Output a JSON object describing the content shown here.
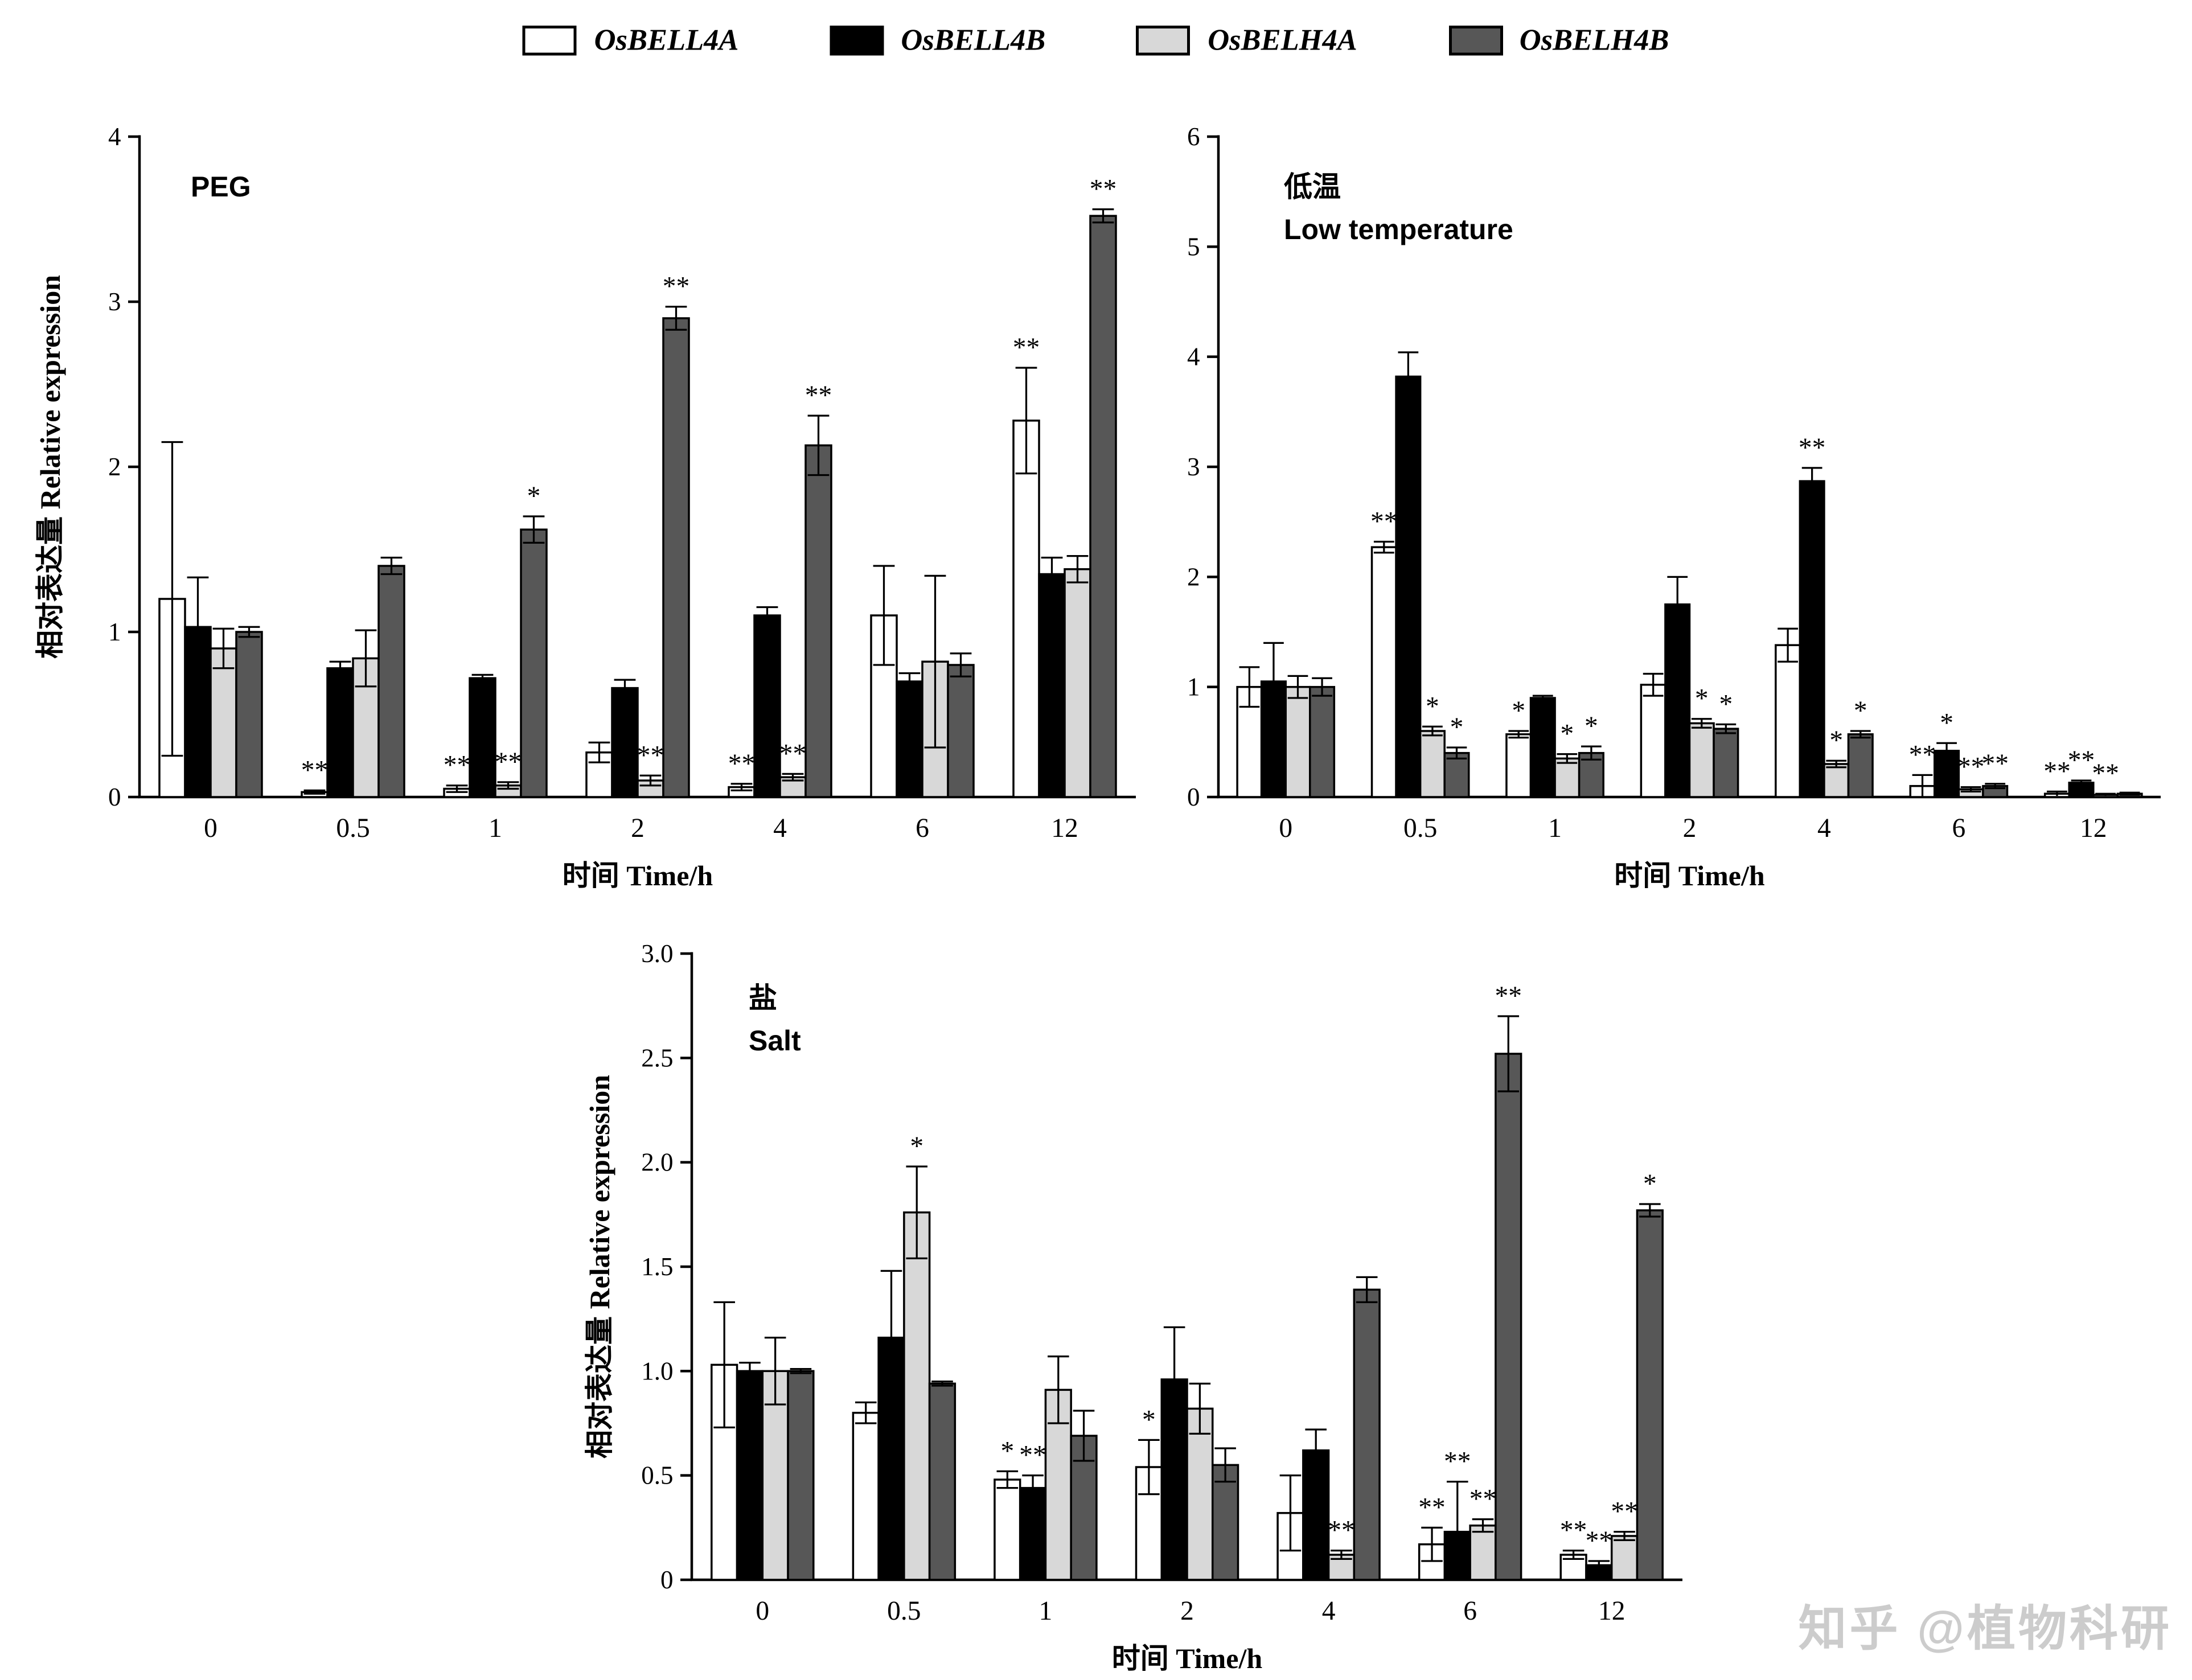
{
  "legend": {
    "items": [
      {
        "label": "OsBELL4A",
        "color": "#ffffff"
      },
      {
        "label": "OsBELL4B",
        "color": "#000000"
      },
      {
        "label": "OsBELH4A",
        "color": "#d8d8d8"
      },
      {
        "label": "OsBELH4B",
        "color": "#575757"
      }
    ]
  },
  "watermark": "知乎 @植物科研",
  "chart_data": [
    {
      "id": "peg",
      "type": "bar",
      "title_lines": [
        "PEG"
      ],
      "xlabel": "时间 Time/h",
      "ylabel": "相对表达量 Relative expression",
      "ylim": [
        0,
        4
      ],
      "yticks": [
        0,
        1,
        2,
        3,
        4
      ],
      "ytick_labels": [
        "0",
        "1",
        "2",
        "3",
        "4"
      ],
      "categories": [
        "0",
        "0.5",
        "1",
        "2",
        "4",
        "6",
        "12"
      ],
      "legend_position": "top",
      "grid": false,
      "series": [
        {
          "name": "OsBELL4A",
          "values": [
            1.2,
            0.03,
            0.05,
            0.27,
            0.06,
            1.1,
            2.28
          ],
          "errors": [
            0.95,
            0.01,
            0.02,
            0.06,
            0.02,
            0.3,
            0.32
          ],
          "sig": [
            "",
            "**",
            "**",
            "",
            "**",
            "",
            "**"
          ]
        },
        {
          "name": "OsBELL4B",
          "values": [
            1.03,
            0.78,
            0.72,
            0.66,
            1.1,
            0.7,
            1.35
          ],
          "errors": [
            0.3,
            0.04,
            0.02,
            0.05,
            0.05,
            0.05,
            0.1
          ],
          "sig": [
            "",
            "",
            "",
            "",
            "",
            "",
            ""
          ]
        },
        {
          "name": "OsBELH4A",
          "values": [
            0.9,
            0.84,
            0.07,
            0.1,
            0.12,
            0.82,
            1.38
          ],
          "errors": [
            0.12,
            0.17,
            0.02,
            0.03,
            0.02,
            0.52,
            0.08
          ],
          "sig": [
            "",
            "",
            "**",
            "**",
            "**",
            "",
            ""
          ]
        },
        {
          "name": "OsBELH4B",
          "values": [
            1.0,
            1.4,
            1.62,
            2.9,
            2.13,
            0.8,
            3.52
          ],
          "errors": [
            0.03,
            0.05,
            0.08,
            0.07,
            0.18,
            0.07,
            0.04
          ],
          "sig": [
            "",
            "",
            "*",
            "**",
            "**",
            "",
            "**"
          ]
        }
      ]
    },
    {
      "id": "lowtemp",
      "type": "bar",
      "title_lines": [
        "低温",
        "Low temperature"
      ],
      "xlabel": "时间 Time/h",
      "ylabel": "",
      "ylim": [
        0,
        6
      ],
      "yticks": [
        0,
        1,
        2,
        3,
        4,
        5,
        6
      ],
      "ytick_labels": [
        "0",
        "1",
        "2",
        "3",
        "4",
        "5",
        "6"
      ],
      "categories": [
        "0",
        "0.5",
        "1",
        "2",
        "4",
        "6",
        "12"
      ],
      "legend_position": "top",
      "grid": false,
      "series": [
        {
          "name": "OsBELL4A",
          "values": [
            1.0,
            2.27,
            0.57,
            1.02,
            1.38,
            0.1,
            0.03
          ],
          "errors": [
            0.18,
            0.05,
            0.03,
            0.1,
            0.15,
            0.1,
            0.02
          ],
          "sig": [
            "",
            "**",
            "*",
            "",
            "",
            "**",
            "**"
          ]
        },
        {
          "name": "OsBELL4B",
          "values": [
            1.05,
            3.82,
            0.9,
            1.75,
            2.87,
            0.42,
            0.13
          ],
          "errors": [
            0.35,
            0.22,
            0.02,
            0.25,
            0.12,
            0.07,
            0.02
          ],
          "sig": [
            "",
            "",
            "",
            "",
            "**",
            "*",
            "**"
          ]
        },
        {
          "name": "OsBELH4A",
          "values": [
            1.0,
            0.6,
            0.35,
            0.67,
            0.3,
            0.07,
            0.02
          ],
          "errors": [
            0.1,
            0.04,
            0.04,
            0.04,
            0.03,
            0.02,
            0.01
          ],
          "sig": [
            "",
            "*",
            "*",
            "*",
            "*",
            "**",
            "**"
          ]
        },
        {
          "name": "OsBELH4B",
          "values": [
            1.0,
            0.4,
            0.4,
            0.62,
            0.57,
            0.1,
            0.03
          ],
          "errors": [
            0.08,
            0.05,
            0.06,
            0.04,
            0.03,
            0.02,
            0.01
          ],
          "sig": [
            "",
            "*",
            "*",
            "*",
            "*",
            "**",
            ""
          ]
        }
      ]
    },
    {
      "id": "salt",
      "type": "bar",
      "title_lines": [
        "盐",
        "Salt"
      ],
      "xlabel": "时间 Time/h",
      "ylabel": "相对表达量 Relative expression",
      "ylim": [
        0,
        3
      ],
      "yticks": [
        0,
        0.5,
        1,
        1.5,
        2,
        2.5,
        3
      ],
      "ytick_labels": [
        "0",
        "0.5",
        "1.0",
        "1.5",
        "2.0",
        "2.5",
        "3.0"
      ],
      "categories": [
        "0",
        "0.5",
        "1",
        "2",
        "4",
        "6",
        "12"
      ],
      "legend_position": "top",
      "grid": false,
      "series": [
        {
          "name": "OsBELL4A",
          "values": [
            1.03,
            0.8,
            0.48,
            0.54,
            0.32,
            0.17,
            0.12
          ],
          "errors": [
            0.3,
            0.05,
            0.04,
            0.13,
            0.18,
            0.08,
            0.02
          ],
          "sig": [
            "",
            "",
            "*",
            "*",
            "",
            "**",
            "**"
          ]
        },
        {
          "name": "OsBELL4B",
          "values": [
            1.0,
            1.16,
            0.44,
            0.96,
            0.62,
            0.23,
            0.07
          ],
          "errors": [
            0.04,
            0.32,
            0.06,
            0.25,
            0.1,
            0.24,
            0.02
          ],
          "sig": [
            "",
            "",
            "**",
            "",
            "",
            "**",
            "**"
          ]
        },
        {
          "name": "OsBELH4A",
          "values": [
            1.0,
            1.76,
            0.91,
            0.82,
            0.12,
            0.26,
            0.21
          ],
          "errors": [
            0.16,
            0.22,
            0.16,
            0.12,
            0.02,
            0.03,
            0.02
          ],
          "sig": [
            "",
            "*",
            "",
            "",
            "**",
            "**",
            "**"
          ]
        },
        {
          "name": "OsBELH4B",
          "values": [
            1.0,
            0.94,
            0.69,
            0.55,
            1.39,
            2.52,
            1.77
          ],
          "errors": [
            0.01,
            0.01,
            0.12,
            0.08,
            0.06,
            0.18,
            0.03
          ],
          "sig": [
            "",
            "",
            "",
            "",
            "",
            "**",
            "*"
          ]
        }
      ]
    }
  ]
}
